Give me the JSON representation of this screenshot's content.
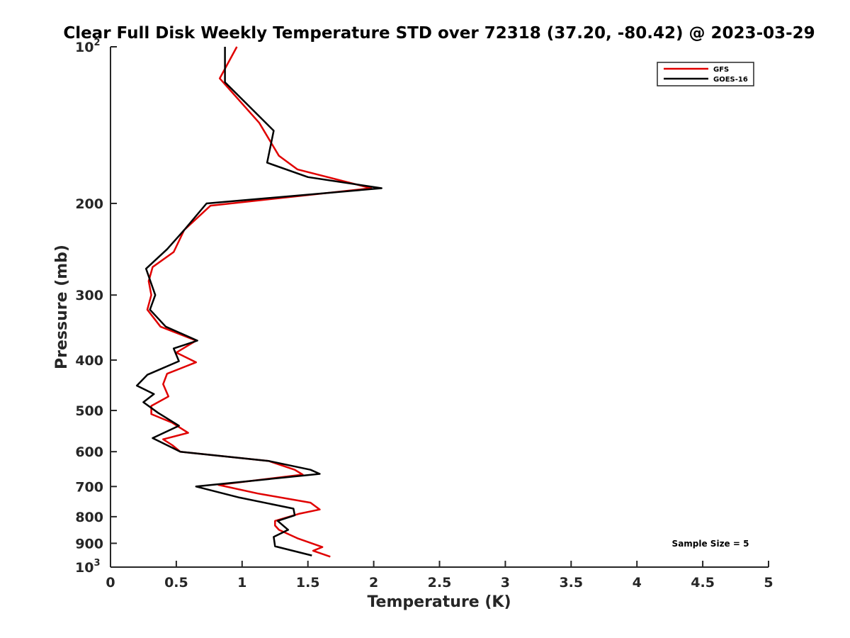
{
  "chart_data": {
    "type": "line",
    "title": "Clear Full Disk Weekly Temperature STD over 72318 (37.20, -80.42) @ 2023-03-29",
    "xlabel": "Temperature (K)",
    "ylabel": "Pressure (mb)",
    "xlim": [
      0,
      5
    ],
    "ylim": [
      100,
      1000
    ],
    "yscale": "log",
    "y_reversed": true,
    "x_ticks": [
      "0",
      "0.5",
      "1",
      "1.5",
      "2",
      "2.5",
      "3",
      "3.5",
      "4",
      "4.5",
      "5"
    ],
    "x_tick_values": [
      0,
      0.5,
      1,
      1.5,
      2,
      2.5,
      3,
      3.5,
      4,
      4.5,
      5
    ],
    "y_tick_values": [
      100,
      200,
      300,
      400,
      500,
      600,
      700,
      800,
      900,
      1000
    ],
    "y_ticks": [
      {
        "base": "10",
        "exp": "2"
      },
      {
        "base": "200",
        "exp": ""
      },
      {
        "base": "300",
        "exp": ""
      },
      {
        "base": "400",
        "exp": ""
      },
      {
        "base": "500",
        "exp": ""
      },
      {
        "base": "600",
        "exp": ""
      },
      {
        "base": "700",
        "exp": ""
      },
      {
        "base": "800",
        "exp": ""
      },
      {
        "base": "900",
        "exp": ""
      },
      {
        "base": "10",
        "exp": "3"
      }
    ],
    "grid": false,
    "legend_position": "top-right",
    "annotation": "Sample Size = 5",
    "series": [
      {
        "name": "GFS",
        "color": "#e00000",
        "points": [
          [
            0.96,
            100
          ],
          [
            0.83,
            115
          ],
          [
            1.13,
            140
          ],
          [
            1.28,
            162
          ],
          [
            1.42,
            172
          ],
          [
            1.98,
            187
          ],
          [
            0.76,
            202
          ],
          [
            0.56,
            225
          ],
          [
            0.48,
            248
          ],
          [
            0.32,
            265
          ],
          [
            0.29,
            282
          ],
          [
            0.31,
            300
          ],
          [
            0.28,
            320
          ],
          [
            0.38,
            345
          ],
          [
            0.65,
            367
          ],
          [
            0.5,
            387
          ],
          [
            0.65,
            404
          ],
          [
            0.43,
            425
          ],
          [
            0.4,
            445
          ],
          [
            0.44,
            470
          ],
          [
            0.31,
            490
          ],
          [
            0.31,
            508
          ],
          [
            0.47,
            528
          ],
          [
            0.59,
            552
          ],
          [
            0.4,
            568
          ],
          [
            0.47,
            583
          ],
          [
            0.53,
            600
          ],
          [
            1.2,
            625
          ],
          [
            1.4,
            650
          ],
          [
            1.46,
            664
          ],
          [
            0.82,
            695
          ],
          [
            1.12,
            722
          ],
          [
            1.52,
            752
          ],
          [
            1.59,
            775
          ],
          [
            1.43,
            790
          ],
          [
            1.25,
            815
          ],
          [
            1.25,
            832
          ],
          [
            1.28,
            848
          ],
          [
            1.42,
            880
          ],
          [
            1.61,
            915
          ],
          [
            1.54,
            930
          ],
          [
            1.67,
            955
          ]
        ]
      },
      {
        "name": "GOES-16",
        "color": "#000000",
        "points": [
          [
            0.87,
            100
          ],
          [
            0.87,
            117
          ],
          [
            1.24,
            145
          ],
          [
            1.19,
            167
          ],
          [
            1.5,
            178
          ],
          [
            2.06,
            187
          ],
          [
            0.73,
            200
          ],
          [
            0.56,
            225
          ],
          [
            0.43,
            245
          ],
          [
            0.27,
            267
          ],
          [
            0.34,
            300
          ],
          [
            0.3,
            320
          ],
          [
            0.42,
            345
          ],
          [
            0.66,
            367
          ],
          [
            0.48,
            380
          ],
          [
            0.52,
            402
          ],
          [
            0.28,
            427
          ],
          [
            0.2,
            448
          ],
          [
            0.33,
            465
          ],
          [
            0.25,
            482
          ],
          [
            0.36,
            505
          ],
          [
            0.52,
            535
          ],
          [
            0.32,
            565
          ],
          [
            0.53,
            600
          ],
          [
            1.2,
            625
          ],
          [
            1.52,
            650
          ],
          [
            1.59,
            662
          ],
          [
            0.65,
            700
          ],
          [
            0.98,
            735
          ],
          [
            1.39,
            772
          ],
          [
            1.4,
            795
          ],
          [
            1.27,
            815
          ],
          [
            1.35,
            848
          ],
          [
            1.24,
            875
          ],
          [
            1.25,
            912
          ],
          [
            1.53,
            950
          ]
        ]
      }
    ]
  }
}
